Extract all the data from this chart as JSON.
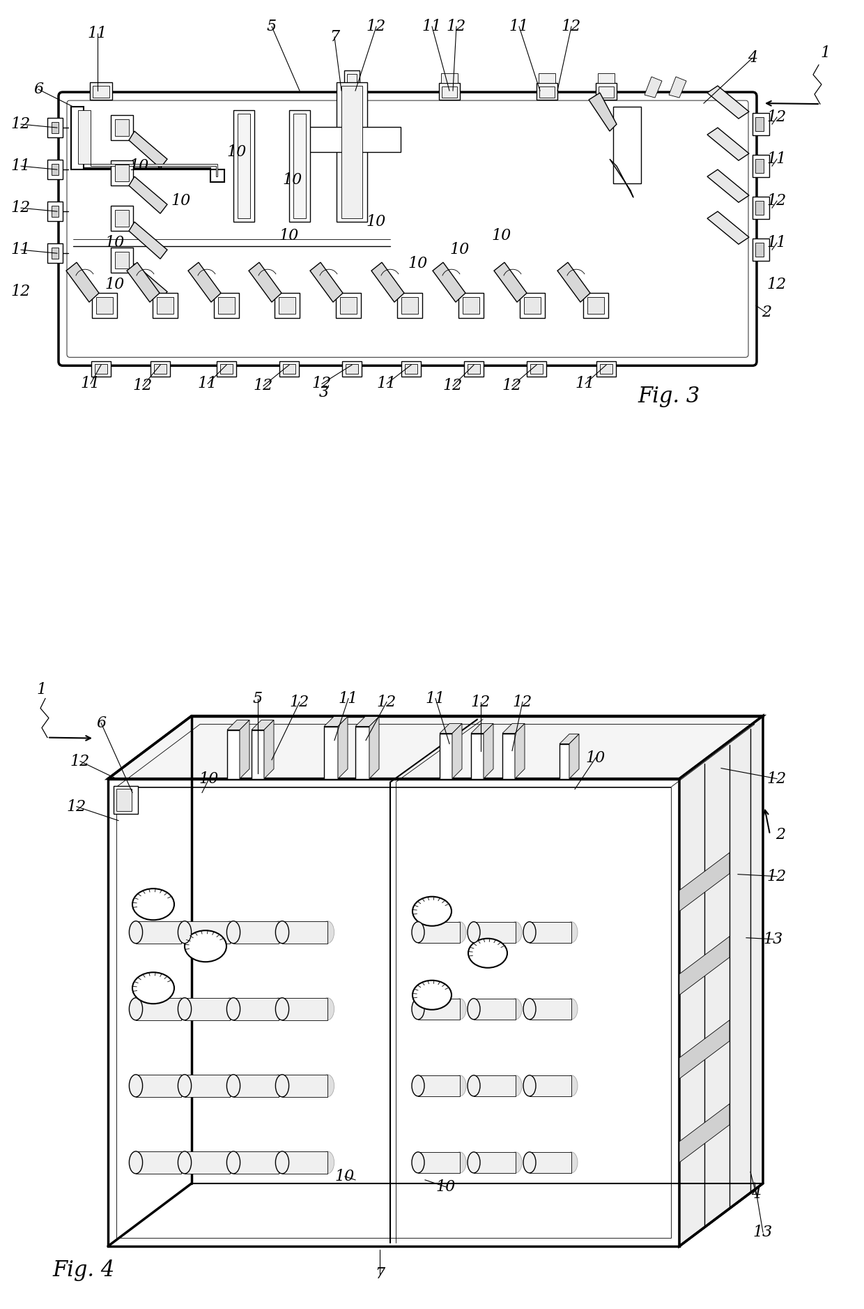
{
  "bg": "#ffffff",
  "lc": "#000000",
  "fig_width": 12.4,
  "fig_height": 18.77,
  "dpi": 100
}
